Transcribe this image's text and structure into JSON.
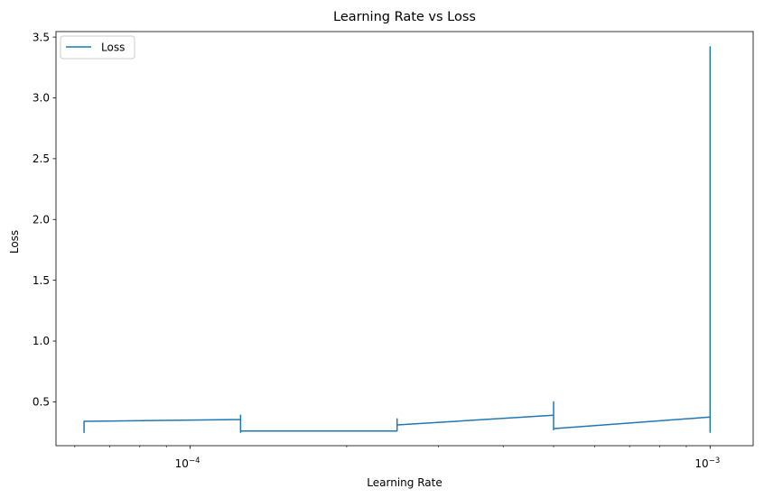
{
  "chart_data": {
    "type": "line",
    "title": "Learning Rate vs Loss",
    "xlabel": "Learning Rate",
    "ylabel": "Loss",
    "xscale": "log",
    "xlim": [
      5.52e-05,
      0.00121
    ],
    "ylim": [
      0.1396,
      3.5453
    ],
    "grid": false,
    "legend": {
      "placement": "upper-left",
      "entries": [
        "Loss"
      ]
    },
    "colors": {
      "line": "#1f77b4",
      "axes": "#000000",
      "legend_border": "#cccccc"
    },
    "yticks": [
      {
        "value": 0.5,
        "label": "0.5"
      },
      {
        "value": 1.0,
        "label": "1.0"
      },
      {
        "value": 1.5,
        "label": "1.5"
      },
      {
        "value": 2.0,
        "label": "2.0"
      },
      {
        "value": 2.5,
        "label": "2.5"
      },
      {
        "value": 3.0,
        "label": "3.0"
      },
      {
        "value": 3.5,
        "label": "3.5"
      }
    ],
    "xticks_major": [
      {
        "value": 0.0001,
        "base": "10",
        "exp": "−4"
      },
      {
        "value": 0.001,
        "base": "10",
        "exp": "−3"
      }
    ],
    "xticks_minor": [
      6e-05,
      7e-05,
      8e-05,
      9e-05,
      0.0002,
      0.0003,
      0.0004,
      0.0005,
      0.0006,
      0.0007,
      0.0008,
      0.0009
    ],
    "series": [
      {
        "name": "Loss",
        "x": [
          6.25e-05,
          6.25e-05,
          6.25e-05,
          0.000125,
          0.000125,
          0.000125,
          0.000125,
          0.00025,
          0.00025,
          0.00025,
          0.00025,
          0.0005,
          0.0005,
          0.0005,
          0.0005,
          0.001,
          0.001,
          0.001,
          0.001
        ],
        "y": [
          0.25,
          0.33,
          0.34,
          0.355,
          0.39,
          0.25,
          0.26,
          0.26,
          0.36,
          0.32,
          0.31,
          0.39,
          0.5,
          0.27,
          0.28,
          0.375,
          0.25,
          3.42,
          0.9
        ]
      }
    ]
  }
}
